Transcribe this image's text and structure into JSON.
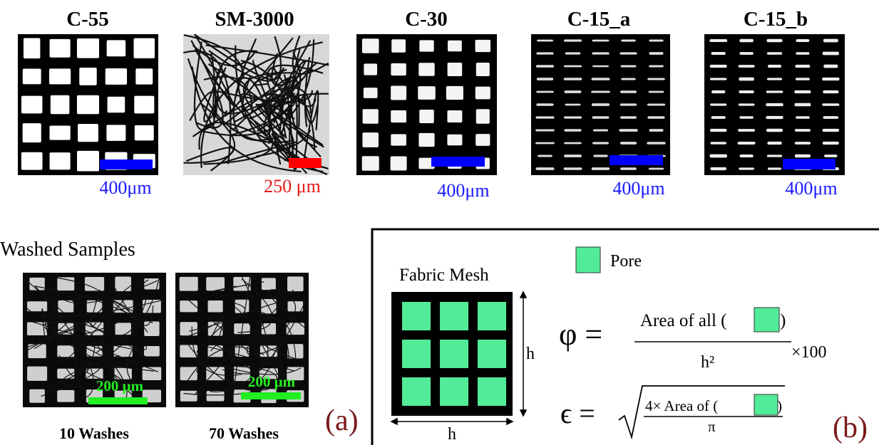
{
  "panel_a": {
    "samples": [
      {
        "title": "C-55",
        "scale_label": "400μm"
      },
      {
        "title": "SM-3000",
        "scale_label": "250 μm"
      },
      {
        "title": "C-30",
        "scale_label": "400μm"
      },
      {
        "title": "C-15_a",
        "scale_label": "400μm"
      },
      {
        "title": "C-15_b",
        "scale_label": "400μm"
      }
    ],
    "washed": {
      "title": "Washed Samples",
      "samples": [
        {
          "caption": "10 Washes",
          "scale_label": "200 μm"
        },
        {
          "caption": "70 Washes",
          "scale_label": "200 μm"
        }
      ]
    },
    "label": "(a)"
  },
  "panel_b": {
    "legend": "Pore",
    "mesh_title": "Fabric Mesh",
    "height_label": "h",
    "width_label": "h",
    "porosity": {
      "lhs": "φ =",
      "numerator_left": "Area of all (",
      "numerator_right": ")",
      "denominator": "h²",
      "factor": "×100"
    },
    "pore_size": {
      "lhs": "ϵ =",
      "numerator_left": "4× Area of (",
      "numerator_right": ")",
      "denominator": "π"
    },
    "label": "(b)"
  }
}
